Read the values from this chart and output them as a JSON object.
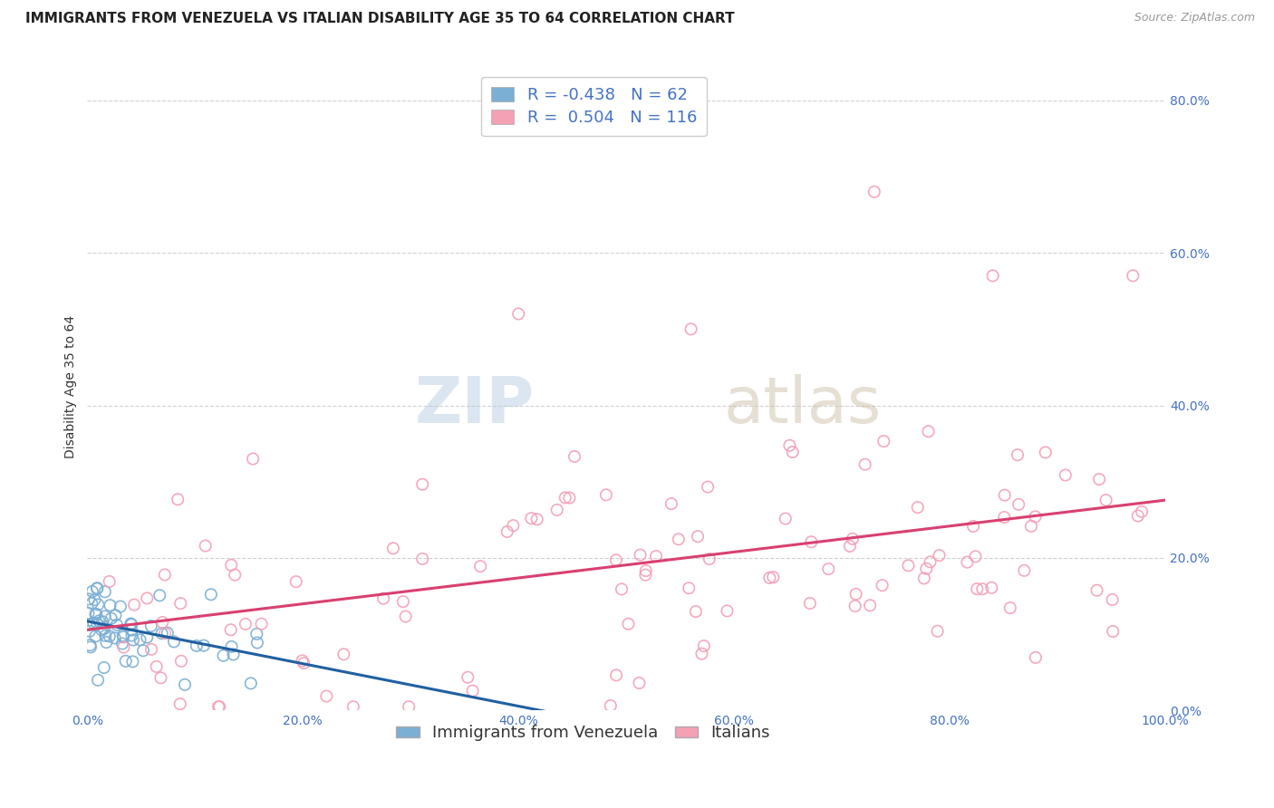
{
  "title": "IMMIGRANTS FROM VENEZUELA VS ITALIAN DISABILITY AGE 35 TO 64 CORRELATION CHART",
  "source": "Source: ZipAtlas.com",
  "ylabel": "Disability Age 35 to 64",
  "watermark_zip": "ZIP",
  "watermark_atlas": "atlas",
  "legend_label_blue": "Immigrants from Venezuela",
  "legend_label_pink": "Italians",
  "R_blue": -0.438,
  "N_blue": 62,
  "R_pink": 0.504,
  "N_pink": 116,
  "blue_marker_color": "#7bafd4",
  "blue_line_color": "#2060a0",
  "pink_marker_color": "#f4a0b5",
  "pink_line_color": "#d94070",
  "background_color": "#ffffff",
  "grid_color": "#cccccc",
  "xlim": [
    0.0,
    1.0
  ],
  "ylim": [
    0.0,
    0.85
  ],
  "xticks": [
    0.0,
    0.2,
    0.4,
    0.6,
    0.8,
    1.0
  ],
  "yticks": [
    0.0,
    0.2,
    0.4,
    0.6,
    0.8
  ],
  "xtick_labels": [
    "0.0%",
    "20.0%",
    "40.0%",
    "60.0%",
    "80.0%",
    "100.0%"
  ],
  "ytick_labels": [
    "0.0%",
    "20.0%",
    "40.0%",
    "60.0%",
    "80.0%"
  ],
  "title_fontsize": 11,
  "axis_label_fontsize": 10,
  "tick_fontsize": 10,
  "legend_fontsize": 13,
  "watermark_fontsize_zip": 52,
  "watermark_fontsize_atlas": 52,
  "watermark_color_zip": "#b0c8e0",
  "watermark_color_atlas": "#c8b8a0",
  "watermark_alpha": 0.45
}
